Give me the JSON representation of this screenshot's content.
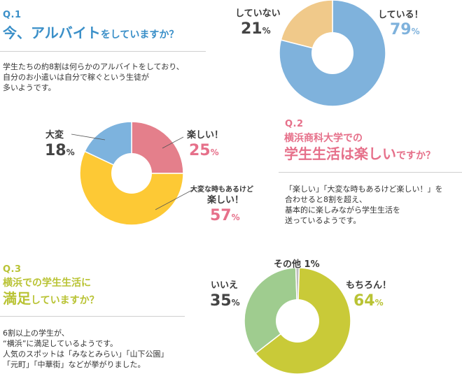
{
  "colors": {
    "q1": "#3a8fc8",
    "q2": "#e6708a",
    "q3": "#b9c334",
    "job_yes": "#7fb2dc",
    "job_no": "#f0c98a",
    "fun": "#e47f8b",
    "tough": "#7db3de",
    "mixed": "#fdc935",
    "yes": "#c9ca38",
    "no": "#9fcc8f",
    "other": "#bdbdbd"
  },
  "q1": {
    "num": "Q.1",
    "title_big": "今、アルバイト",
    "title_small": "をしていますか？",
    "desc": "学生たちの約8割は何らかのアルバイトをしており、\n自分のお小遣いは自分で稼ぐという生徒が\n多いようです。"
  },
  "q2": {
    "num": "Q.2",
    "title_line1": "横浜商科大学での",
    "title_big": "学生生活は楽しい",
    "title_small": "ですか？",
    "desc": "「楽しい」「大変な時もあるけど楽しい！」を\n合わせると8割を超え、\n基本的に楽しみながら学生生活を\n送っているようです。"
  },
  "q3": {
    "num": "Q.3",
    "title_line1": "横浜での学生生活に",
    "title_big": "満足",
    "title_small": "していますか？",
    "desc": "6割以上の学生が、\n“横浜”に満足しているようです。\n人気のスポットは「みなとみらい」「山下公園」\n「元町」「中華街」などが挙がりました。"
  },
  "labels": {
    "job_yes": {
      "name": "している！",
      "pct": "79",
      "unit": "%"
    },
    "job_no": {
      "name": "していない",
      "pct": "21",
      "unit": "%"
    },
    "fun": {
      "name": "楽しい！",
      "pct": "25",
      "unit": "%"
    },
    "tough": {
      "name": "大変",
      "pct": "18",
      "unit": "%"
    },
    "mixed": {
      "name_line1": "大変な時もあるけど",
      "name_line2": "楽しい！",
      "pct": "57",
      "unit": "%"
    },
    "yes": {
      "name": "もちろん！",
      "pct": "64",
      "unit": "%"
    },
    "no": {
      "name": "いいえ",
      "pct": "35",
      "unit": "%"
    },
    "other": {
      "name": "その他 1%"
    }
  },
  "chart_data": [
    {
      "type": "pie",
      "title": "今、アルバイトをしていますか？",
      "categories": [
        "している！",
        "していない"
      ],
      "values": [
        79,
        21
      ]
    },
    {
      "type": "pie",
      "title": "横浜商科大学での学生生活は楽しいですか？",
      "categories": [
        "楽しい！",
        "大変な時もあるけど楽しい！",
        "大変"
      ],
      "values": [
        25,
        57,
        18
      ]
    },
    {
      "type": "pie",
      "title": "横浜での学生生活に満足していますか？",
      "categories": [
        "もちろん！",
        "いいえ",
        "その他"
      ],
      "values": [
        64,
        35,
        1
      ]
    }
  ]
}
